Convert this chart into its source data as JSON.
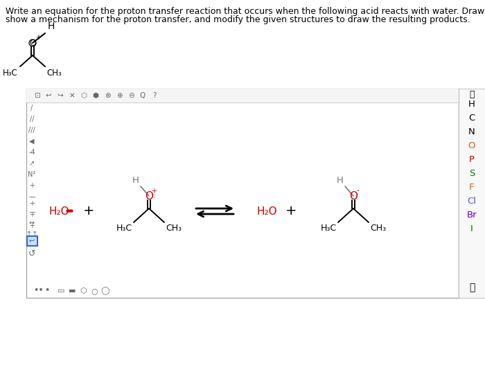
{
  "bg": "#ffffff",
  "red": "#cc0000",
  "black": "#000000",
  "gray": "#555555",
  "panel_border": "#aaaaaa",
  "panel_bg": "#ffffff",
  "toolbar_bg": "#f5f5f5",
  "right_panel_bg": "#f8f8f8",
  "right_labels": [
    "H",
    "C",
    "N",
    "O",
    "P",
    "S",
    "F",
    "Cl",
    "Br",
    "I"
  ],
  "right_colors": [
    "#000000",
    "#000000",
    "#000000",
    "#cc6600",
    "#cc0000",
    "#007700",
    "#cc6600",
    "#5555cc",
    "#5500cc",
    "#007700"
  ]
}
